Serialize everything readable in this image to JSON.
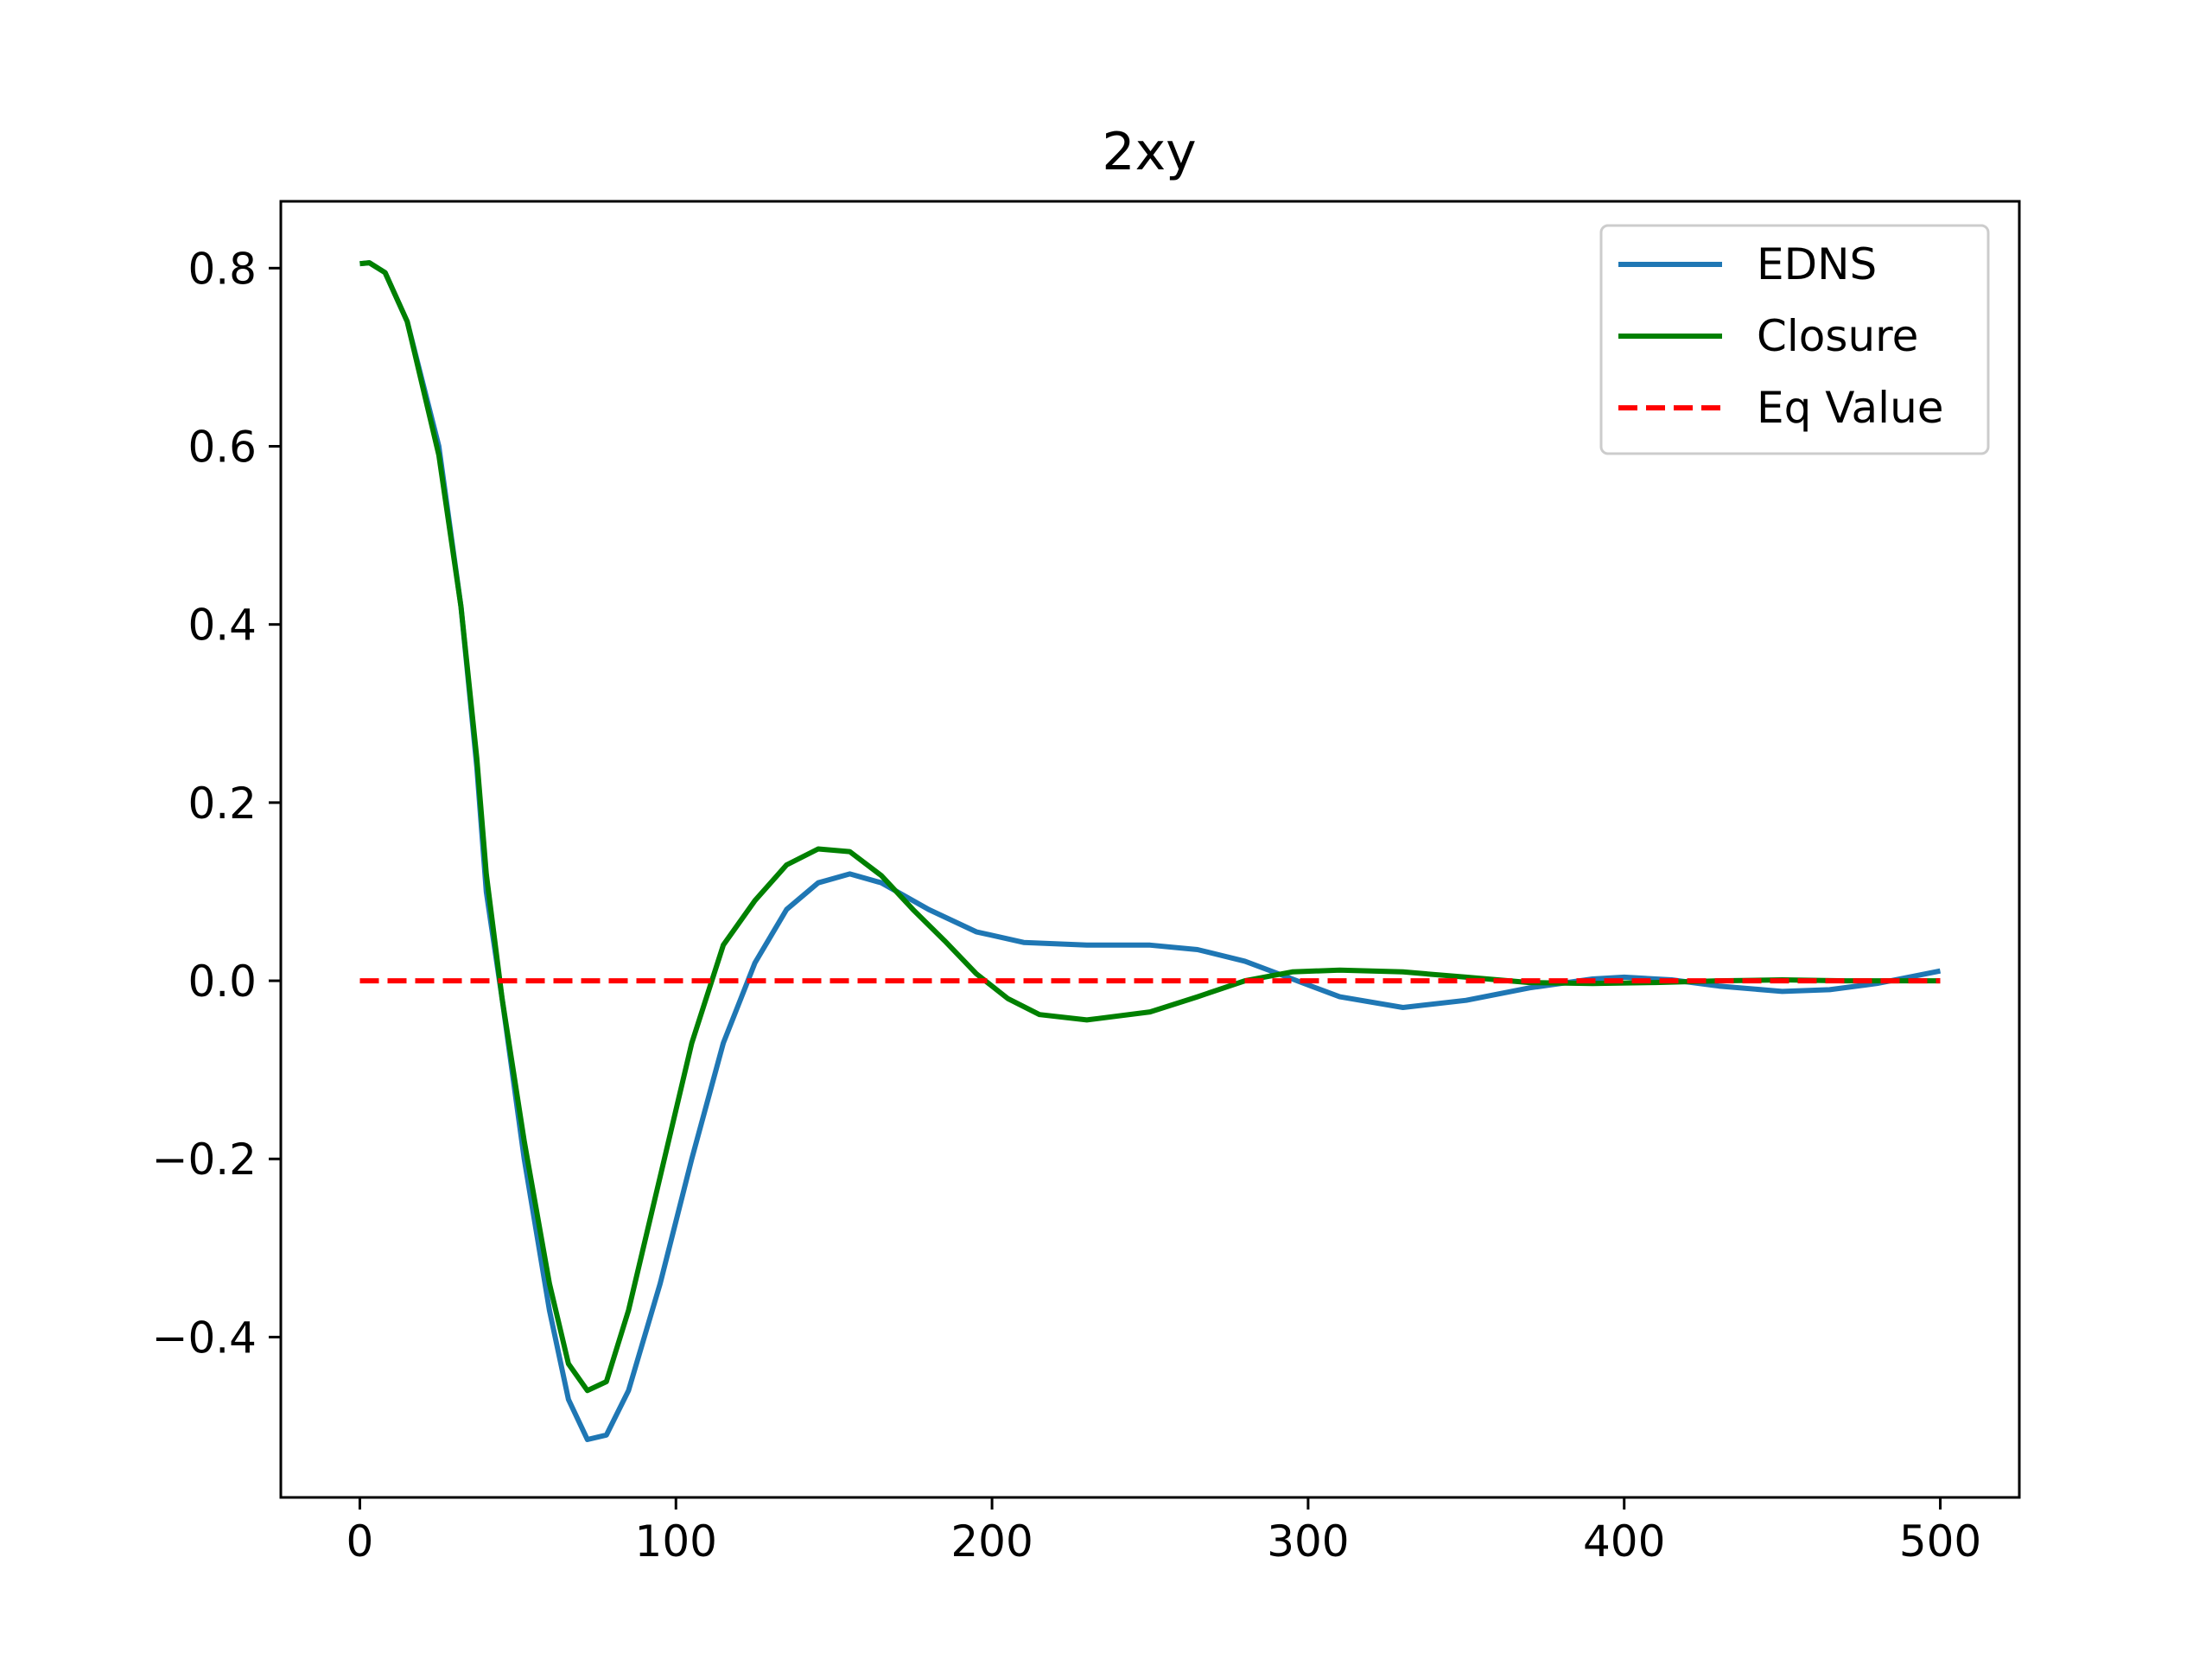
{
  "chart_data": {
    "type": "line",
    "title": "2xy",
    "xlabel": "",
    "ylabel": "",
    "xlim": [
      -25,
      525
    ],
    "ylim": [
      -0.58,
      0.875
    ],
    "x_ticks": [
      0,
      100,
      200,
      300,
      400,
      500
    ],
    "x_tick_labels": [
      "0",
      "100",
      "200",
      "300",
      "400",
      "500"
    ],
    "y_ticks": [
      -0.4,
      -0.2,
      0.0,
      0.2,
      0.4,
      0.6,
      0.8
    ],
    "y_tick_labels": [
      "−0.4",
      "−0.2",
      "0.0",
      "0.2",
      "0.4",
      "0.6",
      "0.8"
    ],
    "grid": false,
    "legend_position": "top-right",
    "series": [
      {
        "name": "EDNS",
        "color": "#1f77b4",
        "style": "solid",
        "points": [
          [
            0,
            0.805
          ],
          [
            3,
            0.806
          ],
          [
            8,
            0.795
          ],
          [
            15,
            0.74
          ],
          [
            25,
            0.6
          ],
          [
            32,
            0.42
          ],
          [
            37,
            0.24
          ],
          [
            40,
            0.1
          ],
          [
            45,
            -0.02
          ],
          [
            52,
            -0.2
          ],
          [
            60,
            -0.37
          ],
          [
            66,
            -0.47
          ],
          [
            72,
            -0.515
          ],
          [
            78,
            -0.51
          ],
          [
            85,
            -0.46
          ],
          [
            95,
            -0.34
          ],
          [
            105,
            -0.2
          ],
          [
            115,
            -0.07
          ],
          [
            125,
            0.02
          ],
          [
            135,
            0.08
          ],
          [
            145,
            0.11
          ],
          [
            155,
            0.12
          ],
          [
            165,
            0.11
          ],
          [
            180,
            0.08
          ],
          [
            195,
            0.055
          ],
          [
            210,
            0.043
          ],
          [
            230,
            0.04
          ],
          [
            250,
            0.04
          ],
          [
            265,
            0.035
          ],
          [
            280,
            0.022
          ],
          [
            295,
            0.002
          ],
          [
            310,
            -0.018
          ],
          [
            330,
            -0.03
          ],
          [
            350,
            -0.022
          ],
          [
            370,
            -0.008
          ],
          [
            390,
            0.002
          ],
          [
            400,
            0.004
          ],
          [
            415,
            0.001
          ],
          [
            430,
            -0.006
          ],
          [
            450,
            -0.012
          ],
          [
            465,
            -0.01
          ],
          [
            480,
            -0.003
          ],
          [
            490,
            0.004
          ],
          [
            500,
            0.011
          ]
        ]
      },
      {
        "name": "Closure",
        "color": "#008000",
        "style": "solid",
        "points": [
          [
            0,
            0.805
          ],
          [
            3,
            0.806
          ],
          [
            8,
            0.795
          ],
          [
            15,
            0.74
          ],
          [
            25,
            0.59
          ],
          [
            32,
            0.42
          ],
          [
            37,
            0.25
          ],
          [
            40,
            0.12
          ],
          [
            45,
            -0.02
          ],
          [
            52,
            -0.18
          ],
          [
            60,
            -0.34
          ],
          [
            66,
            -0.43
          ],
          [
            72,
            -0.46
          ],
          [
            78,
            -0.45
          ],
          [
            85,
            -0.37
          ],
          [
            95,
            -0.22
          ],
          [
            105,
            -0.07
          ],
          [
            115,
            0.04
          ],
          [
            125,
            0.09
          ],
          [
            135,
            0.13
          ],
          [
            145,
            0.148
          ],
          [
            155,
            0.145
          ],
          [
            165,
            0.118
          ],
          [
            175,
            0.08
          ],
          [
            185,
            0.045
          ],
          [
            195,
            0.008
          ],
          [
            205,
            -0.02
          ],
          [
            215,
            -0.038
          ],
          [
            230,
            -0.044
          ],
          [
            250,
            -0.035
          ],
          [
            265,
            -0.018
          ],
          [
            280,
            0.0
          ],
          [
            295,
            0.01
          ],
          [
            310,
            0.012
          ],
          [
            330,
            0.01
          ],
          [
            350,
            0.004
          ],
          [
            370,
            -0.002
          ],
          [
            390,
            -0.003
          ],
          [
            410,
            -0.002
          ],
          [
            430,
            0.0
          ],
          [
            450,
            0.001
          ],
          [
            470,
            0.0
          ],
          [
            490,
            0.0
          ],
          [
            500,
            0.0
          ]
        ]
      },
      {
        "name": "Eq Value",
        "color": "#ff0000",
        "style": "dashed",
        "points": [
          [
            0,
            0.0
          ],
          [
            500,
            0.0
          ]
        ]
      }
    ]
  }
}
